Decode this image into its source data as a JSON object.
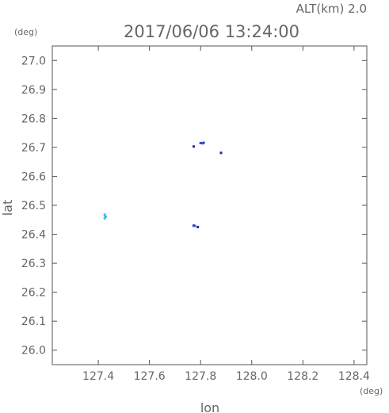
{
  "header": {
    "alt_label": "ALT(km) 2.0",
    "timestamp": "2017/06/06 13:24:00"
  },
  "chart_data": {
    "type": "scatter",
    "title": "2017/06/06 13:24:00",
    "xlabel": "lon",
    "ylabel": "lat",
    "x_unit": "(deg)",
    "y_unit": "(deg)",
    "xlim": [
      127.22,
      128.45
    ],
    "ylim": [
      25.95,
      27.05
    ],
    "x_ticks": [
      127.4,
      127.6,
      127.8,
      128.0,
      128.2,
      128.4
    ],
    "x_tick_labels": [
      "127.4",
      "127.6",
      "127.8",
      "128.0",
      "128.2",
      "128.4"
    ],
    "y_ticks": [
      26.0,
      26.1,
      26.2,
      26.3,
      26.4,
      26.5,
      26.6,
      26.7,
      26.8,
      26.9,
      27.0
    ],
    "y_tick_labels": [
      "26.0",
      "26.1",
      "26.2",
      "26.3",
      "26.4",
      "26.5",
      "26.6",
      "26.7",
      "26.8",
      "26.9",
      "27.0"
    ],
    "grid": false,
    "points": [
      {
        "x": 127.425,
        "y": 26.468,
        "color": "#33ccee"
      },
      {
        "x": 127.428,
        "y": 26.461,
        "color": "#22aadd"
      },
      {
        "x": 127.425,
        "y": 26.455,
        "color": "#33ccee"
      },
      {
        "x": 127.773,
        "y": 26.703,
        "color": "#2222aa"
      },
      {
        "x": 127.8,
        "y": 26.715,
        "color": "#3344cc"
      },
      {
        "x": 127.808,
        "y": 26.714,
        "color": "#3355dd"
      },
      {
        "x": 127.812,
        "y": 26.716,
        "color": "#3344cc"
      },
      {
        "x": 127.88,
        "y": 26.681,
        "color": "#2222aa"
      },
      {
        "x": 127.773,
        "y": 26.43,
        "color": "#3333aa"
      },
      {
        "x": 127.777,
        "y": 26.429,
        "color": "#3355dd"
      },
      {
        "x": 127.789,
        "y": 26.425,
        "color": "#2222aa"
      }
    ]
  }
}
